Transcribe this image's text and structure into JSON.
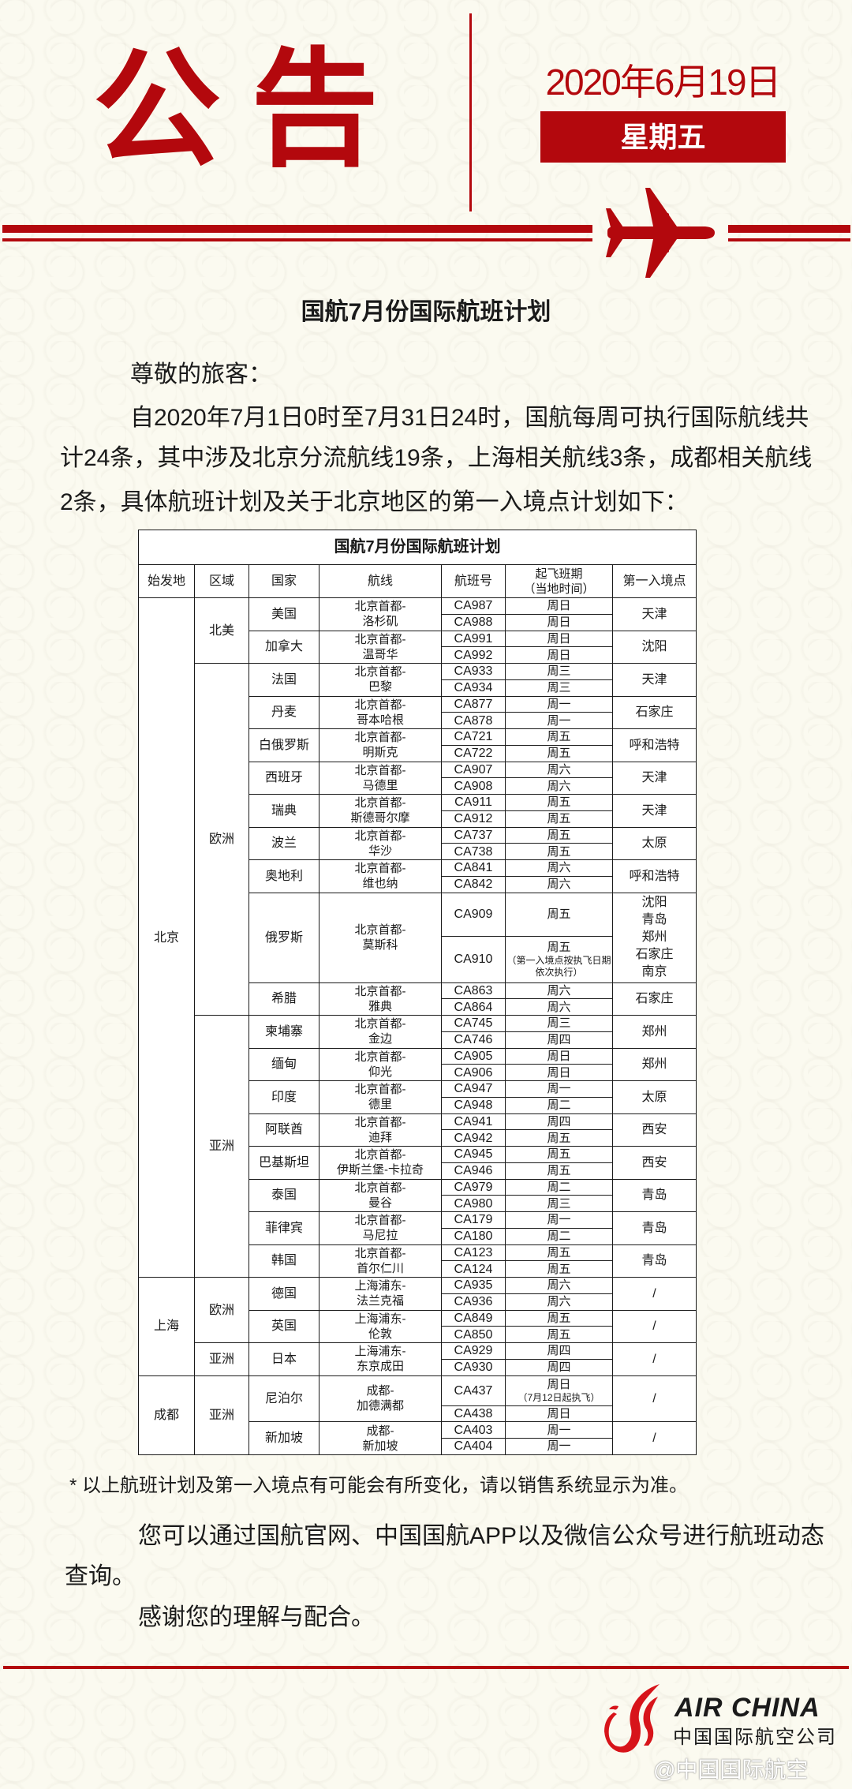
{
  "header": {
    "title": "公告",
    "date": "2020年6月19日",
    "weekday": "星期五",
    "accent_color": "#b3080d",
    "icon": "airplane-icon"
  },
  "doc_title": "国航7月份国际航班计划",
  "intro": {
    "greeting": "尊敬的旅客：",
    "lines": [
      "自2020年7月1日0时至7月31日24时，国航每周可执行国际航线共",
      "计24条，其中涉及北京分流航线19条，上海相关航线3条，成都相关航线",
      "2条，具体航班计划及关于北京地区的第一入境点计划如下："
    ]
  },
  "table": {
    "title": "国航7月份国际航班计划",
    "headers": [
      "始发地",
      "区域",
      "国家",
      "航线",
      "航班号",
      "起飞班期",
      "第一入境点"
    ],
    "schedule_header_sub": "（当地时间）",
    "origins": [
      {
        "name": "北京",
        "regions": [
          {
            "name": "北美",
            "countries": [
              {
                "name": "美国",
                "route": [
                  "北京首都-",
                  "洛杉矶"
                ],
                "entry": [
                  "天津"
                ],
                "flights": [
                  {
                    "no": "CA987",
                    "day": "周日"
                  },
                  {
                    "no": "CA988",
                    "day": "周日"
                  }
                ]
              },
              {
                "name": "加拿大",
                "route": [
                  "北京首都-",
                  "温哥华"
                ],
                "entry": [
                  "沈阳"
                ],
                "flights": [
                  {
                    "no": "CA991",
                    "day": "周日"
                  },
                  {
                    "no": "CA992",
                    "day": "周日"
                  }
                ]
              }
            ]
          },
          {
            "name": "欧洲",
            "countries": [
              {
                "name": "法国",
                "route": [
                  "北京首都-",
                  "巴黎"
                ],
                "entry": [
                  "天津"
                ],
                "flights": [
                  {
                    "no": "CA933",
                    "day": "周三"
                  },
                  {
                    "no": "CA934",
                    "day": "周三"
                  }
                ]
              },
              {
                "name": "丹麦",
                "route": [
                  "北京首都-",
                  "哥本哈根"
                ],
                "entry": [
                  "石家庄"
                ],
                "flights": [
                  {
                    "no": "CA877",
                    "day": "周一"
                  },
                  {
                    "no": "CA878",
                    "day": "周一"
                  }
                ]
              },
              {
                "name": "白俄罗斯",
                "route": [
                  "北京首都-",
                  "明斯克"
                ],
                "entry": [
                  "呼和浩特"
                ],
                "flights": [
                  {
                    "no": "CA721",
                    "day": "周五"
                  },
                  {
                    "no": "CA722",
                    "day": "周五"
                  }
                ]
              },
              {
                "name": "西班牙",
                "route": [
                  "北京首都-",
                  "马德里"
                ],
                "entry": [
                  "天津"
                ],
                "flights": [
                  {
                    "no": "CA907",
                    "day": "周六"
                  },
                  {
                    "no": "CA908",
                    "day": "周六"
                  }
                ]
              },
              {
                "name": "瑞典",
                "route": [
                  "北京首都-",
                  "斯德哥尔摩"
                ],
                "entry": [
                  "天津"
                ],
                "flights": [
                  {
                    "no": "CA911",
                    "day": "周五"
                  },
                  {
                    "no": "CA912",
                    "day": "周五"
                  }
                ]
              },
              {
                "name": "波兰",
                "route": [
                  "北京首都-",
                  "华沙"
                ],
                "entry": [
                  "太原"
                ],
                "flights": [
                  {
                    "no": "CA737",
                    "day": "周五"
                  },
                  {
                    "no": "CA738",
                    "day": "周五"
                  }
                ]
              },
              {
                "name": "奥地利",
                "route": [
                  "北京首都-",
                  "维也纳"
                ],
                "entry": [
                  "呼和浩特"
                ],
                "flights": [
                  {
                    "no": "CA841",
                    "day": "周六"
                  },
                  {
                    "no": "CA842",
                    "day": "周六"
                  }
                ]
              },
              {
                "name": "俄罗斯",
                "route": [
                  "北京首都-",
                  "莫斯科"
                ],
                "entry": [
                  "沈阳",
                  "青岛",
                  "郑州",
                  "石家庄",
                  "南京"
                ],
                "flights": [
                  {
                    "no": "CA909",
                    "day": "周五"
                  },
                  {
                    "no": "CA910",
                    "day": "周五",
                    "note": "（第一入境点按执飞日期依次执行）"
                  }
                ]
              },
              {
                "name": "希腊",
                "route": [
                  "北京首都-",
                  "雅典"
                ],
                "entry": [
                  "石家庄"
                ],
                "flights": [
                  {
                    "no": "CA863",
                    "day": "周六"
                  },
                  {
                    "no": "CA864",
                    "day": "周六"
                  }
                ]
              }
            ]
          },
          {
            "name": "亚洲",
            "countries": [
              {
                "name": "柬埔寨",
                "route": [
                  "北京首都-",
                  "金边"
                ],
                "entry": [
                  "郑州"
                ],
                "flights": [
                  {
                    "no": "CA745",
                    "day": "周三"
                  },
                  {
                    "no": "CA746",
                    "day": "周四"
                  }
                ]
              },
              {
                "name": "缅甸",
                "route": [
                  "北京首都-",
                  "仰光"
                ],
                "entry": [
                  "郑州"
                ],
                "flights": [
                  {
                    "no": "CA905",
                    "day": "周日"
                  },
                  {
                    "no": "CA906",
                    "day": "周日"
                  }
                ]
              },
              {
                "name": "印度",
                "route": [
                  "北京首都-",
                  "德里"
                ],
                "entry": [
                  "太原"
                ],
                "flights": [
                  {
                    "no": "CA947",
                    "day": "周一"
                  },
                  {
                    "no": "CA948",
                    "day": "周二"
                  }
                ]
              },
              {
                "name": "阿联酋",
                "route": [
                  "北京首都-",
                  "迪拜"
                ],
                "entry": [
                  "西安"
                ],
                "flights": [
                  {
                    "no": "CA941",
                    "day": "周四"
                  },
                  {
                    "no": "CA942",
                    "day": "周五"
                  }
                ]
              },
              {
                "name": "巴基斯坦",
                "route": [
                  "北京首都-",
                  "伊斯兰堡-卡拉奇"
                ],
                "entry": [
                  "西安"
                ],
                "flights": [
                  {
                    "no": "CA945",
                    "day": "周五"
                  },
                  {
                    "no": "CA946",
                    "day": "周五"
                  }
                ]
              },
              {
                "name": "泰国",
                "route": [
                  "北京首都-",
                  "曼谷"
                ],
                "entry": [
                  "青岛"
                ],
                "flights": [
                  {
                    "no": "CA979",
                    "day": "周二"
                  },
                  {
                    "no": "CA980",
                    "day": "周三"
                  }
                ]
              },
              {
                "name": "菲律宾",
                "route": [
                  "北京首都-",
                  "马尼拉"
                ],
                "entry": [
                  "青岛"
                ],
                "flights": [
                  {
                    "no": "CA179",
                    "day": "周一"
                  },
                  {
                    "no": "CA180",
                    "day": "周二"
                  }
                ]
              },
              {
                "name": "韩国",
                "route": [
                  "北京首都-",
                  "首尔仁川"
                ],
                "entry": [
                  "青岛"
                ],
                "flights": [
                  {
                    "no": "CA123",
                    "day": "周五"
                  },
                  {
                    "no": "CA124",
                    "day": "周五"
                  }
                ]
              }
            ]
          }
        ]
      },
      {
        "name": "上海",
        "regions": [
          {
            "name": "欧洲",
            "countries": [
              {
                "name": "德国",
                "route": [
                  "上海浦东-",
                  "法兰克福"
                ],
                "entry": [
                  "/"
                ],
                "flights": [
                  {
                    "no": "CA935",
                    "day": "周六"
                  },
                  {
                    "no": "CA936",
                    "day": "周六"
                  }
                ]
              },
              {
                "name": "英国",
                "route": [
                  "上海浦东-",
                  "伦敦"
                ],
                "entry": [
                  "/"
                ],
                "flights": [
                  {
                    "no": "CA849",
                    "day": "周五"
                  },
                  {
                    "no": "CA850",
                    "day": "周五"
                  }
                ]
              }
            ]
          },
          {
            "name": "亚洲",
            "countries": [
              {
                "name": "日本",
                "route": [
                  "上海浦东-",
                  "东京成田"
                ],
                "entry": [
                  "/"
                ],
                "flights": [
                  {
                    "no": "CA929",
                    "day": "周四"
                  },
                  {
                    "no": "CA930",
                    "day": "周四"
                  }
                ]
              }
            ]
          }
        ]
      },
      {
        "name": "成都",
        "regions": [
          {
            "name": "亚洲",
            "countries": [
              {
                "name": "尼泊尔",
                "route": [
                  "成都-",
                  "加德满都"
                ],
                "entry": [
                  "/"
                ],
                "flights": [
                  {
                    "no": "CA437",
                    "day": "周日",
                    "note": "（7月12日起执飞）"
                  },
                  {
                    "no": "CA438",
                    "day": "周日"
                  }
                ]
              },
              {
                "name": "新加坡",
                "route": [
                  "成都-",
                  "新加坡"
                ],
                "entry": [
                  "/"
                ],
                "flights": [
                  {
                    "no": "CA403",
                    "day": "周一"
                  },
                  {
                    "no": "CA404",
                    "day": "周一"
                  }
                ]
              }
            ]
          }
        ]
      }
    ]
  },
  "footnote": "* 以上航班计划及第一入境点有可能会有所变化，请以销售系统显示为准。",
  "closing": {
    "lines": [
      "您可以通过国航官网、中国国航APP以及微信公众号进行航班动态",
      "查询。"
    ],
    "thanks": "感谢您的理解与配合。"
  },
  "logo": {
    "en": "AIR CHINA",
    "cn": "中国国际航空公司",
    "icon": "phoenix-logo-icon"
  },
  "watermark": "@中国国际航空"
}
